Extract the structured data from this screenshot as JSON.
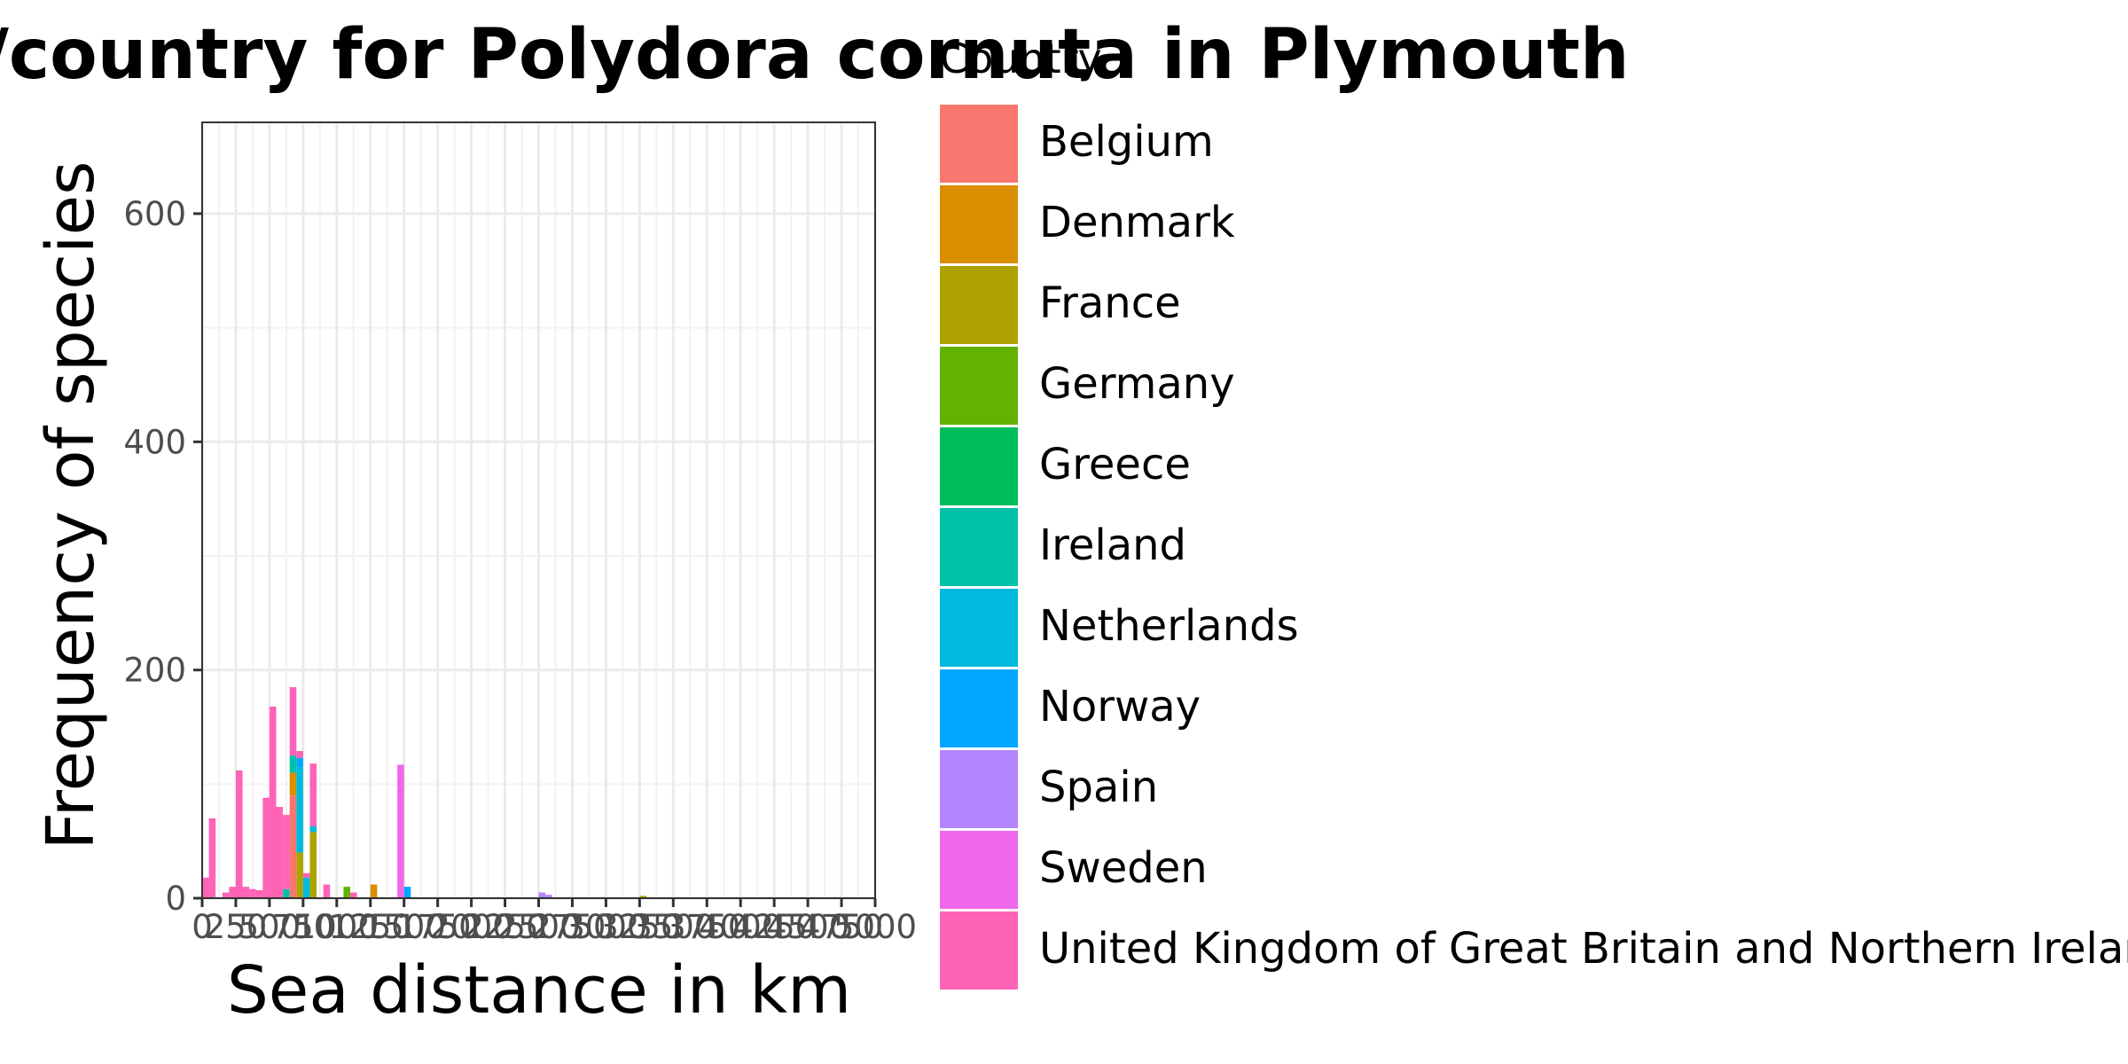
{
  "chart_data": {
    "type": "bar",
    "stacked": true,
    "title": "Sea distances/country for Polydora cornuta in Plymouth",
    "xlabel": "Sea distance in km",
    "ylabel": "Frequency of species",
    "xlim": [
      0,
      5000
    ],
    "ylim": [
      0,
      680
    ],
    "x_ticks": [
      0,
      250,
      500,
      750,
      1000,
      1250,
      1500,
      1750,
      2000,
      2250,
      2500,
      2750,
      3000,
      3250,
      3500,
      3750,
      4000,
      4250,
      4500,
      4750,
      5000
    ],
    "y_ticks": [
      0,
      200,
      400,
      600
    ],
    "bin_width": 50,
    "grid": true,
    "legend": {
      "title": "Country",
      "position": "right"
    },
    "series": [
      {
        "name": "Belgium",
        "color": "#F8766D",
        "bins": [
          [
            650,
            90
          ]
        ]
      },
      {
        "name": "Denmark",
        "color": "#DB8E00",
        "bins": [
          [
            650,
            20
          ],
          [
            1250,
            12
          ]
        ]
      },
      {
        "name": "France",
        "color": "#AEA200",
        "bins": [
          [
            700,
            40
          ],
          [
            800,
            58
          ],
          [
            3250,
            2
          ]
        ]
      },
      {
        "name": "Germany",
        "color": "#64B200",
        "bins": [
          [
            1050,
            10
          ]
        ]
      },
      {
        "name": "Greece",
        "color": "#00BD5C",
        "bins": []
      },
      {
        "name": "Ireland",
        "color": "#00C1A7",
        "bins": [
          [
            600,
            8
          ],
          [
            650,
            15
          ]
        ]
      },
      {
        "name": "Netherlands",
        "color": "#00BADE",
        "bins": [
          [
            700,
            75
          ],
          [
            750,
            18
          ],
          [
            800,
            5
          ]
        ]
      },
      {
        "name": "Norway",
        "color": "#00A6FF",
        "bins": [
          [
            700,
            8
          ],
          [
            1500,
            10
          ]
        ]
      },
      {
        "name": "Spain",
        "color": "#B385FF",
        "bins": [
          [
            2500,
            5
          ],
          [
            2550,
            3
          ]
        ]
      },
      {
        "name": "Sweden",
        "color": "#EF67EB",
        "bins": [
          [
            1450,
            117
          ]
        ]
      },
      {
        "name": "United Kingdom of Great Britain and Northern Ireland",
        "color": "#FF63B6",
        "bins": [
          [
            0,
            18
          ],
          [
            50,
            70
          ],
          [
            150,
            5
          ],
          [
            200,
            10
          ],
          [
            250,
            112
          ],
          [
            300,
            10
          ],
          [
            350,
            8
          ],
          [
            400,
            7
          ],
          [
            450,
            88
          ],
          [
            500,
            168
          ],
          [
            550,
            80
          ],
          [
            600,
            65
          ],
          [
            650,
            60
          ],
          [
            700,
            6
          ],
          [
            750,
            4
          ],
          [
            800,
            55
          ],
          [
            900,
            12
          ],
          [
            1100,
            5
          ]
        ]
      }
    ]
  }
}
